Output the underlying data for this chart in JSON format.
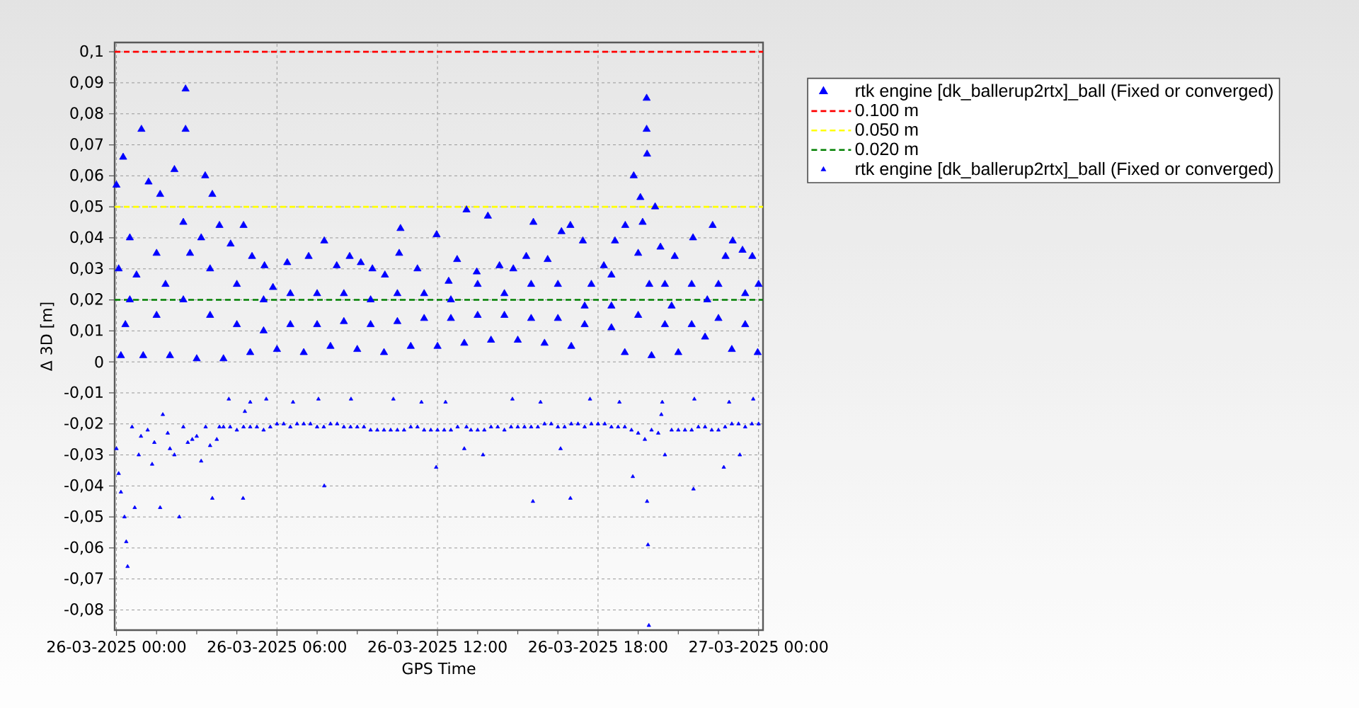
{
  "chart_data": {
    "type": "scatter",
    "xlabel": "GPS Time",
    "ylabel": "Δ 3D [m]",
    "xlim": [
      "2025-03-25T23:56",
      "2025-03-27T00:10"
    ],
    "ylim": [
      -0.0865,
      0.103
    ],
    "xticks": [
      {
        "value": "2025-03-26T00:00",
        "label": "26-03-2025 00:00"
      },
      {
        "value": "2025-03-26T01:30",
        "label": null
      },
      {
        "value": "2025-03-26T03:00",
        "label": null
      },
      {
        "value": "2025-03-26T04:30",
        "label": null
      },
      {
        "value": "2025-03-26T06:00",
        "label": "26-03-2025 06:00"
      },
      {
        "value": "2025-03-26T07:30",
        "label": null
      },
      {
        "value": "2025-03-26T09:00",
        "label": null
      },
      {
        "value": "2025-03-26T10:30",
        "label": null
      },
      {
        "value": "2025-03-26T12:00",
        "label": "26-03-2025 12:00"
      },
      {
        "value": "2025-03-26T13:30",
        "label": null
      },
      {
        "value": "2025-03-26T15:00",
        "label": null
      },
      {
        "value": "2025-03-26T16:30",
        "label": null
      },
      {
        "value": "2025-03-26T18:00",
        "label": "26-03-2025 18:00"
      },
      {
        "value": "2025-03-26T19:30",
        "label": null
      },
      {
        "value": "2025-03-26T21:00",
        "label": null
      },
      {
        "value": "2025-03-26T22:30",
        "label": null
      },
      {
        "value": "2025-03-27T00:00",
        "label": "27-03-2025 00:00"
      }
    ],
    "yticks": [
      {
        "value": -0.08,
        "label": "-0,08"
      },
      {
        "value": -0.07,
        "label": "-0,07"
      },
      {
        "value": -0.06,
        "label": "-0,06"
      },
      {
        "value": -0.05,
        "label": "-0,05"
      },
      {
        "value": -0.04,
        "label": "-0,04"
      },
      {
        "value": -0.03,
        "label": "-0,03"
      },
      {
        "value": -0.02,
        "label": "-0,02"
      },
      {
        "value": -0.01,
        "label": "-0,01"
      },
      0,
      {
        "value": 0.01,
        "label": "0,01"
      },
      {
        "value": 0.02,
        "label": "0,02"
      },
      {
        "value": 0.03,
        "label": "0,03"
      },
      {
        "value": 0.04,
        "label": "0,04"
      },
      {
        "value": 0.05,
        "label": "0,05"
      },
      {
        "value": 0.06,
        "label": "0,06"
      },
      {
        "value": 0.07,
        "label": "0,07"
      },
      {
        "value": 0.08,
        "label": "0,08"
      },
      {
        "value": 0.09,
        "label": "0,09"
      },
      {
        "value": 0.1,
        "label": "0,1"
      }
    ],
    "grid": true,
    "legend": "top right",
    "marker": "triangle",
    "ref_lines": [
      {
        "axis": "y",
        "value": 0.1,
        "label": "0.100 m",
        "color": "#ff0000",
        "line_style": "dashed"
      },
      {
        "axis": "y",
        "value": 0.05,
        "label": "0.050 m",
        "color": "#ffff00",
        "line_style": "dashed"
      },
      {
        "axis": "y",
        "value": 0.02,
        "label": "0.020 m",
        "color": "#008000",
        "line_style": "dashed"
      }
    ],
    "series": [
      {
        "name": "rtk engine [dk_ballerup2rtx]_ball (Fixed or converged)",
        "color": "#0000ff",
        "x": [
          "2025-03-26T00:00",
          "2025-03-26T00:10",
          "2025-03-26T00:15",
          "2025-03-26T00:30",
          "2025-03-26T00:30",
          "2025-03-26T00:56",
          "2025-03-26T01:00",
          "2025-03-26T01:12",
          "2025-03-26T01:30",
          "2025-03-26T01:30",
          "2025-03-26T01:38",
          "2025-03-26T02:00",
          "2025-03-26T02:10",
          "2025-03-26T02:30",
          "2025-03-26T02:30",
          "2025-03-26T02:35",
          "2025-03-26T02:35",
          "2025-03-26T03:00",
          "2025-03-26T03:19",
          "2025-03-26T03:30",
          "2025-03-26T03:30",
          "2025-03-26T03:35",
          "2025-03-26T03:51",
          "2025-03-26T04:00",
          "2025-03-26T04:16",
          "2025-03-26T04:30",
          "2025-03-26T04:30",
          "2025-03-26T04:45",
          "2025-03-26T05:00",
          "2025-03-26T05:04",
          "2025-03-26T05:30",
          "2025-03-26T05:30",
          "2025-03-26T05:32",
          "2025-03-26T05:51",
          "2025-03-26T06:00",
          "2025-03-26T06:23",
          "2025-03-26T06:30",
          "2025-03-26T06:30",
          "2025-03-26T07:00",
          "2025-03-26T07:11",
          "2025-03-26T07:30",
          "2025-03-26T07:30",
          "2025-03-26T07:46",
          "2025-03-26T08:00",
          "2025-03-26T08:14",
          "2025-03-26T08:30",
          "2025-03-26T08:30",
          "2025-03-26T08:43",
          "2025-03-26T09:00",
          "2025-03-26T09:08",
          "2025-03-26T09:30",
          "2025-03-26T09:30",
          "2025-03-26T09:34",
          "2025-03-26T10:00",
          "2025-03-26T10:02",
          "2025-03-26T10:30",
          "2025-03-26T10:30",
          "2025-03-26T10:34",
          "2025-03-26T10:37",
          "2025-03-26T11:00",
          "2025-03-26T11:15",
          "2025-03-26T11:30",
          "2025-03-26T11:30",
          "2025-03-26T11:58",
          "2025-03-26T12:00",
          "2025-03-26T12:25",
          "2025-03-26T12:30",
          "2025-03-26T12:30",
          "2025-03-26T12:44",
          "2025-03-26T13:00",
          "2025-03-26T13:05",
          "2025-03-26T13:28",
          "2025-03-26T13:30",
          "2025-03-26T13:30",
          "2025-03-26T13:53",
          "2025-03-26T14:00",
          "2025-03-26T14:19",
          "2025-03-26T14:30",
          "2025-03-26T14:30",
          "2025-03-26T14:50",
          "2025-03-26T15:00",
          "2025-03-26T15:19",
          "2025-03-26T15:30",
          "2025-03-26T15:30",
          "2025-03-26T15:35",
          "2025-03-26T16:00",
          "2025-03-26T16:07",
          "2025-03-26T16:30",
          "2025-03-26T16:30",
          "2025-03-26T16:38",
          "2025-03-26T16:58",
          "2025-03-26T17:00",
          "2025-03-26T17:26",
          "2025-03-26T17:30",
          "2025-03-26T17:30",
          "2025-03-26T17:45",
          "2025-03-26T18:13",
          "2025-03-26T18:30",
          "2025-03-26T18:30",
          "2025-03-26T18:30",
          "2025-03-26T18:38",
          "2025-03-26T19:00",
          "2025-03-26T19:01",
          "2025-03-26T19:20",
          "2025-03-26T19:30",
          "2025-03-26T19:30",
          "2025-03-26T19:35",
          "2025-03-26T19:49",
          "2025-03-26T19:49",
          "2025-03-26T19:50",
          "2025-03-26T20:00",
          "2025-03-26T20:08",
          "2025-03-26T20:20",
          "2025-03-26T20:30",
          "2025-03-26T20:30",
          "2025-03-26T20:52",
          "2025-03-26T21:00",
          "2025-03-26T21:30",
          "2025-03-26T21:30",
          "2025-03-26T21:33",
          "2025-03-26T22:00",
          "2025-03-26T22:17",
          "2025-03-26T22:30",
          "2025-03-26T22:30",
          "2025-03-26T22:46",
          "2025-03-26T23:00",
          "2025-03-26T23:02",
          "2025-03-26T23:24",
          "2025-03-26T23:30",
          "2025-03-26T23:30",
          "2025-03-26T23:46",
          "2025-03-26T23:58",
          "2025-03-27T00:00",
          "2025-03-26T00:05",
          "2025-03-26T00:20",
          "2025-03-26T00:45",
          "2025-03-26T01:50",
          "2025-03-26T02:45",
          "2025-03-26T03:10",
          "2025-03-26T19:40",
          "2025-03-26T19:55",
          "2025-03-26T20:45",
          "2025-03-26T22:05"
        ],
        "values": [
          0.057,
          0.002,
          0.066,
          0.02,
          0.04,
          0.075,
          0.002,
          0.058,
          0.015,
          0.035,
          0.054,
          0.002,
          0.062,
          0.02,
          0.045,
          0.088,
          0.075,
          0.001,
          0.06,
          0.015,
          0.03,
          0.054,
          0.044,
          0.001,
          0.038,
          0.012,
          0.025,
          0.044,
          0.003,
          0.034,
          0.01,
          0.02,
          0.031,
          0.024,
          0.004,
          0.032,
          0.012,
          0.022,
          0.003,
          0.034,
          0.012,
          0.022,
          0.039,
          0.005,
          0.031,
          0.013,
          0.022,
          0.034,
          0.004,
          0.032,
          0.012,
          0.02,
          0.03,
          0.003,
          0.028,
          0.013,
          0.022,
          0.035,
          0.043,
          0.005,
          0.03,
          0.014,
          0.022,
          0.041,
          0.005,
          0.026,
          0.014,
          0.02,
          0.033,
          0.006,
          0.049,
          0.029,
          0.015,
          0.025,
          0.047,
          0.007,
          0.031,
          0.015,
          0.022,
          0.03,
          0.007,
          0.034,
          0.014,
          0.025,
          0.045,
          0.006,
          0.033,
          0.014,
          0.025,
          0.042,
          0.044,
          0.005,
          0.039,
          0.012,
          0.018,
          0.025,
          0.031,
          0.011,
          0.018,
          0.028,
          0.039,
          0.003,
          0.044,
          0.06,
          0.015,
          0.035,
          0.053,
          0.085,
          0.075,
          0.067,
          0.002,
          0.05,
          0.037,
          0.012,
          0.025,
          0.034,
          0.003,
          0.012,
          0.025,
          0.04,
          0.008,
          0.044,
          0.014,
          0.025,
          0.034,
          0.004,
          0.039,
          0.036,
          0.012,
          0.022,
          0.034,
          0.003,
          0.025,
          0.03,
          0.012,
          0.028,
          0.025,
          0.035,
          0.04,
          0.045,
          0.025,
          0.018,
          0.02
        ]
      },
      {
        "name": "rtk engine [dk_ballerup2rtx]_ball (Fixed or converged)",
        "color": "#0000ff",
        "x": [
          "2025-03-26T00:00",
          "2025-03-26T00:05",
          "2025-03-26T00:10",
          "2025-03-26T00:18",
          "2025-03-26T00:22",
          "2025-03-26T00:25",
          "2025-03-26T00:35",
          "2025-03-26T00:41",
          "2025-03-26T00:50",
          "2025-03-26T01:10",
          "2025-03-26T01:20",
          "2025-03-26T01:38",
          "2025-03-26T01:44",
          "2025-03-26T02:00",
          "2025-03-26T02:21",
          "2025-03-26T02:30",
          "2025-03-26T02:50",
          "2025-03-26T03:10",
          "2025-03-26T03:20",
          "2025-03-26T03:35",
          "2025-03-26T03:51",
          "2025-03-26T04:00",
          "2025-03-26T04:12",
          "2025-03-26T04:30",
          "2025-03-26T04:44",
          "2025-03-26T04:48",
          "2025-03-26T05:00",
          "2025-03-26T05:00",
          "2025-03-26T05:30",
          "2025-03-26T05:36",
          "2025-03-26T06:00",
          "2025-03-26T06:30",
          "2025-03-26T06:36",
          "2025-03-26T07:00",
          "2025-03-26T07:30",
          "2025-03-26T07:33",
          "2025-03-26T07:46",
          "2025-03-26T08:00",
          "2025-03-26T08:30",
          "2025-03-26T08:46",
          "2025-03-26T09:00",
          "2025-03-26T09:30",
          "2025-03-26T10:00",
          "2025-03-26T10:21",
          "2025-03-26T10:30",
          "2025-03-26T11:00",
          "2025-03-26T11:24",
          "2025-03-26T11:30",
          "2025-03-26T11:57",
          "2025-03-26T12:00",
          "2025-03-26T12:18",
          "2025-03-26T12:30",
          "2025-03-26T13:00",
          "2025-03-26T13:05",
          "2025-03-26T13:30",
          "2025-03-26T13:42",
          "2025-03-26T14:00",
          "2025-03-26T14:30",
          "2025-03-26T14:48",
          "2025-03-26T15:00",
          "2025-03-26T15:30",
          "2025-03-26T15:34",
          "2025-03-26T15:51",
          "2025-03-26T16:00",
          "2025-03-26T16:30",
          "2025-03-26T16:36",
          "2025-03-26T16:58",
          "2025-03-26T17:00",
          "2025-03-26T17:30",
          "2025-03-26T17:42",
          "2025-03-26T18:00",
          "2025-03-26T18:30",
          "2025-03-26T18:48",
          "2025-03-26T19:00",
          "2025-03-26T19:18",
          "2025-03-26T19:30",
          "2025-03-26T19:50",
          "2025-03-26T19:52",
          "2025-03-26T19:54",
          "2025-03-26T20:00",
          "2025-03-26T20:22",
          "2025-03-26T20:24",
          "2025-03-26T20:30",
          "2025-03-26T21:00",
          "2025-03-26T21:30",
          "2025-03-26T21:34",
          "2025-03-26T21:36",
          "2025-03-26T22:00",
          "2025-03-26T22:30",
          "2025-03-26T22:42",
          "2025-03-26T22:54",
          "2025-03-26T23:00",
          "2025-03-26T23:18",
          "2025-03-26T23:30",
          "2025-03-26T23:48",
          "2025-03-27T00:00",
          "2025-03-26T04:15",
          "2025-03-26T04:45",
          "2025-03-26T05:15",
          "2025-03-26T05:45",
          "2025-03-26T06:15",
          "2025-03-26T06:45",
          "2025-03-26T07:15",
          "2025-03-26T07:45",
          "2025-03-26T08:15",
          "2025-03-26T08:45",
          "2025-03-26T09:15",
          "2025-03-26T09:45",
          "2025-03-26T10:15",
          "2025-03-26T10:45",
          "2025-03-26T11:15",
          "2025-03-26T11:45",
          "2025-03-26T12:15",
          "2025-03-26T12:45",
          "2025-03-26T13:15",
          "2025-03-26T13:45",
          "2025-03-26T14:15",
          "2025-03-26T14:45",
          "2025-03-26T15:15",
          "2025-03-26T15:45",
          "2025-03-26T16:15",
          "2025-03-26T16:45",
          "2025-03-26T17:15",
          "2025-03-26T17:45",
          "2025-03-26T18:15",
          "2025-03-26T18:45",
          "2025-03-26T19:15",
          "2025-03-26T19:45",
          "2025-03-26T20:15",
          "2025-03-26T20:45",
          "2025-03-26T21:15",
          "2025-03-26T21:45",
          "2025-03-26T22:15",
          "2025-03-26T22:45",
          "2025-03-26T23:15",
          "2025-03-26T23:45",
          "2025-03-26T00:55",
          "2025-03-26T01:25",
          "2025-03-26T01:55",
          "2025-03-26T02:10",
          "2025-03-26T02:40",
          "2025-03-26T03:00",
          "2025-03-26T03:30",
          "2025-03-26T03:45"
        ],
        "values": [
          -0.028,
          -0.036,
          -0.042,
          -0.05,
          -0.058,
          -0.066,
          -0.021,
          -0.047,
          -0.03,
          -0.022,
          -0.033,
          -0.047,
          -0.017,
          -0.028,
          -0.05,
          -0.021,
          -0.025,
          -0.032,
          -0.021,
          -0.044,
          -0.021,
          -0.021,
          -0.012,
          -0.022,
          -0.044,
          -0.016,
          -0.013,
          -0.021,
          -0.022,
          -0.012,
          -0.02,
          -0.021,
          -0.013,
          -0.02,
          -0.021,
          -0.012,
          -0.04,
          -0.02,
          -0.021,
          -0.012,
          -0.021,
          -0.022,
          -0.022,
          -0.012,
          -0.022,
          -0.021,
          -0.013,
          -0.022,
          -0.034,
          -0.022,
          -0.013,
          -0.022,
          -0.028,
          -0.021,
          -0.022,
          -0.03,
          -0.021,
          -0.022,
          -0.012,
          -0.021,
          -0.021,
          -0.045,
          -0.013,
          -0.02,
          -0.021,
          -0.028,
          -0.044,
          -0.02,
          -0.021,
          -0.012,
          -0.02,
          -0.021,
          -0.013,
          -0.021,
          -0.037,
          -0.023,
          -0.045,
          -0.059,
          -0.085,
          -0.022,
          -0.017,
          -0.013,
          -0.03,
          -0.022,
          -0.022,
          -0.041,
          -0.012,
          -0.021,
          -0.022,
          -0.034,
          -0.013,
          -0.02,
          -0.03,
          -0.021,
          -0.012,
          -0.02,
          -0.021,
          -0.021,
          -0.021,
          -0.021,
          -0.02,
          -0.02,
          -0.02,
          -0.021,
          -0.02,
          -0.021,
          -0.021,
          -0.022,
          -0.022,
          -0.022,
          -0.021,
          -0.022,
          -0.022,
          -0.021,
          -0.022,
          -0.022,
          -0.021,
          -0.021,
          -0.021,
          -0.021,
          -0.02,
          -0.021,
          -0.02,
          -0.02,
          -0.02,
          -0.021,
          -0.022,
          -0.025,
          -0.023,
          -0.022,
          -0.022,
          -0.021,
          -0.022,
          -0.021,
          -0.02,
          -0.02,
          -0.024,
          -0.026,
          -0.023,
          -0.03,
          -0.026,
          -0.024,
          -0.027,
          -0.025
        ]
      }
    ]
  }
}
